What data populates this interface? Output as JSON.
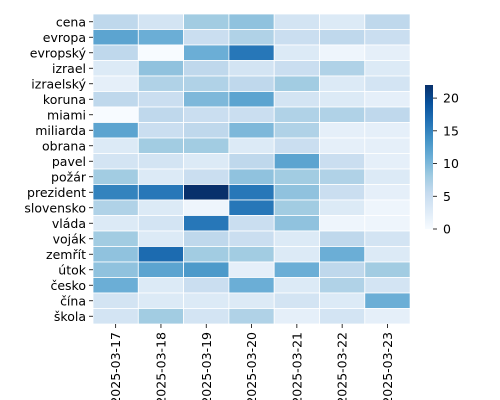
{
  "chart_data": {
    "type": "heatmap",
    "title": "",
    "xlabel": "",
    "ylabel": "",
    "x": [
      "2025-03-17",
      "2025-03-18",
      "2025-03-19",
      "2025-03-20",
      "2025-03-21",
      "2025-03-22",
      "2025-03-23"
    ],
    "y": [
      "cena",
      "evropa",
      "evropský",
      "izrael",
      "izraelský",
      "koruna",
      "miami",
      "miliarda",
      "obrana",
      "pavel",
      "požár",
      "prezident",
      "slovensko",
      "vláda",
      "voják",
      "zemřít",
      "útok",
      "česko",
      "čína",
      "škola"
    ],
    "values": [
      [
        6,
        4,
        8,
        9,
        4,
        3,
        6
      ],
      [
        12,
        11,
        5,
        7,
        5,
        6,
        5
      ],
      [
        6,
        0,
        11,
        16,
        3,
        1,
        2
      ],
      [
        3,
        9,
        6,
        4,
        5,
        7,
        3
      ],
      [
        2,
        7,
        7,
        6,
        8,
        3,
        4
      ],
      [
        6,
        5,
        10,
        12,
        4,
        3,
        2
      ],
      [
        0,
        6,
        5,
        5,
        7,
        7,
        6
      ],
      [
        12,
        5,
        6,
        10,
        7,
        2,
        2
      ],
      [
        3,
        8,
        8,
        3,
        5,
        2,
        2
      ],
      [
        4,
        4,
        3,
        6,
        12,
        5,
        2
      ],
      [
        8,
        3,
        5,
        9,
        8,
        7,
        3
      ],
      [
        15,
        16,
        22,
        16,
        9,
        5,
        2
      ],
      [
        7,
        3,
        1,
        16,
        8,
        3,
        1
      ],
      [
        3,
        4,
        16,
        5,
        9,
        1,
        1
      ],
      [
        8,
        3,
        6,
        5,
        3,
        6,
        4
      ],
      [
        9,
        17,
        8,
        8,
        3,
        11,
        3
      ],
      [
        9,
        12,
        13,
        2,
        11,
        6,
        8
      ],
      [
        11,
        3,
        5,
        11,
        3,
        7,
        4
      ],
      [
        4,
        3,
        3,
        3,
        4,
        3,
        11
      ],
      [
        4,
        8,
        4,
        7,
        2,
        4,
        2
      ]
    ],
    "colorbar": {
      "min": 0,
      "max": 22,
      "ticks": [
        0,
        5,
        10,
        15,
        20
      ]
    },
    "colormap": [
      "#f7fbff",
      "#deebf7",
      "#c6dbef",
      "#9ecae1",
      "#6baed6",
      "#4292c6",
      "#2171b5",
      "#08519c",
      "#08306b"
    ],
    "grid": true
  }
}
